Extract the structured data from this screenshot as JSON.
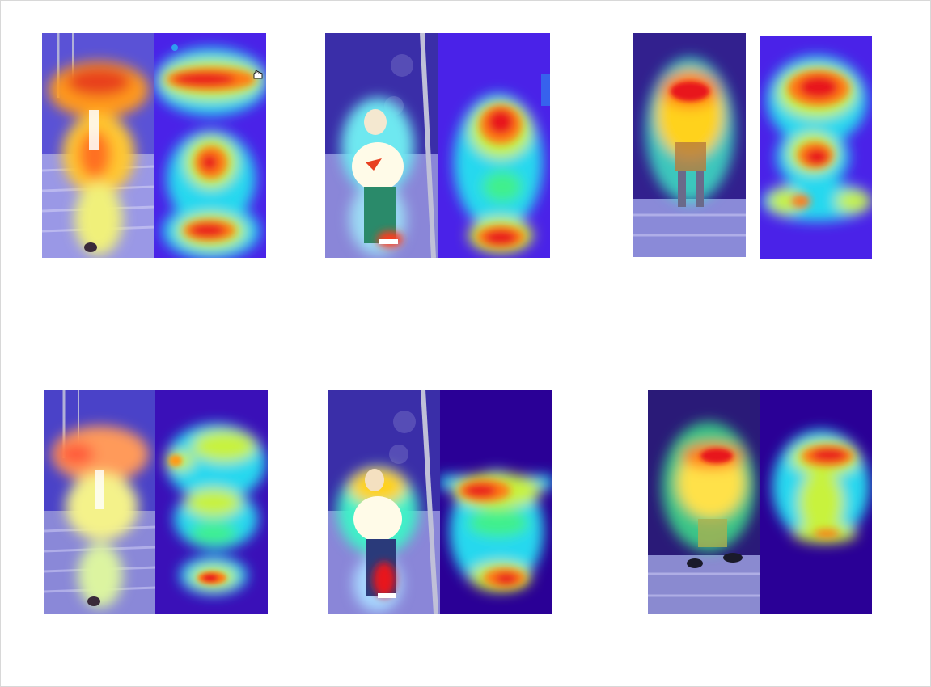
{
  "figure": {
    "rows": 2,
    "columns": 3,
    "panel_kinds": [
      "image-with-attention-overlay",
      "attention-heatmap"
    ],
    "colormap": [
      "#2a0096",
      "#4b24e6",
      "#2f7df0",
      "#23d6ef",
      "#3ff08c",
      "#c8f23c",
      "#ffd21e",
      "#ff7a16",
      "#e8141c",
      "#b00010"
    ],
    "icons": {
      "cursor": "hand-cursor-icon"
    },
    "pairs": [
      {
        "id": "pair-1",
        "subject": "pedestrian-with-backpack-on-stairs"
      },
      {
        "id": "pair-2",
        "subject": "pedestrian-white-shirt-by-pole"
      },
      {
        "id": "pair-3",
        "subject": "pedestrian-orange-shirt-doorway"
      },
      {
        "id": "pair-4",
        "subject": "pedestrian-with-backpack-on-stairs"
      },
      {
        "id": "pair-5",
        "subject": "pedestrian-white-shirt-by-pole"
      },
      {
        "id": "pair-6",
        "subject": "pedestrian-orange-shirt-doorway"
      }
    ]
  }
}
